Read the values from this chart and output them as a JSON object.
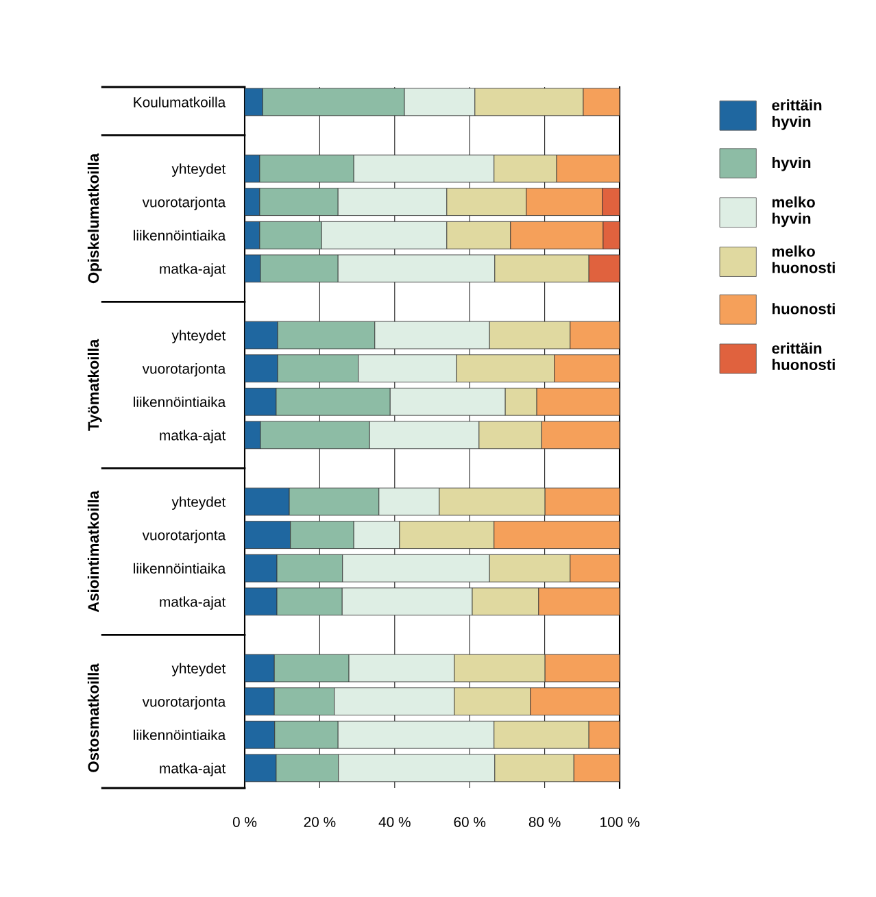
{
  "chart_data": {
    "type": "bar",
    "orientation": "horizontal",
    "stacked": true,
    "categories": [
      "Koulumatkoilla",
      null,
      "yhteydet",
      "vuorotarjonta",
      "liikennöintiaika",
      "matka-ajat",
      null,
      "yhteydet",
      "vuorotarjonta",
      "liikennöintiaika",
      "matka-ajat",
      null,
      "yhteydet",
      "vuorotarjonta",
      "liikennöintiaika",
      "matka-ajat",
      null,
      "yhteydet",
      "vuorotarjonta",
      "liikennöintiaika",
      "matka-ajat"
    ],
    "series": [
      {
        "name": "erittäin hyvin",
        "color": "#1f67a0",
        "values": [
          4.8,
          null,
          4.0,
          4.0,
          4.0,
          4.2,
          null,
          8.8,
          8.8,
          8.4,
          4.2,
          null,
          11.9,
          12.2,
          8.6,
          8.6,
          null,
          7.9,
          7.9,
          8.0,
          8.4
        ]
      },
      {
        "name": "hyvin",
        "color": "#8dbca5",
        "values": [
          37.8,
          null,
          25.1,
          20.9,
          16.5,
          20.7,
          null,
          25.9,
          21.5,
          30.4,
          29.1,
          null,
          23.9,
          16.9,
          17.5,
          17.4,
          null,
          19.9,
          16.0,
          16.9,
          16.6
        ]
      },
      {
        "name": "melko hyvin",
        "color": "#deeee4",
        "values": [
          18.8,
          null,
          37.4,
          29.0,
          33.4,
          41.8,
          null,
          30.6,
          26.2,
          30.7,
          29.2,
          null,
          16.1,
          12.2,
          39.2,
          34.7,
          null,
          28.1,
          32.0,
          41.6,
          41.7
        ]
      },
      {
        "name": "melko huonosti",
        "color": "#e0d9a0",
        "values": [
          28.9,
          null,
          16.7,
          21.2,
          17.0,
          25.1,
          null,
          21.5,
          26.1,
          8.4,
          16.7,
          null,
          28.2,
          25.2,
          21.5,
          17.7,
          null,
          24.2,
          20.3,
          25.3,
          21.1
        ]
      },
      {
        "name": "huonosti",
        "color": "#f5a05a",
        "values": [
          9.7,
          null,
          16.8,
          20.3,
          24.7,
          null,
          null,
          13.2,
          17.4,
          22.1,
          20.8,
          null,
          19.9,
          33.5,
          13.2,
          21.6,
          null,
          19.9,
          23.8,
          8.2,
          12.2
        ]
      },
      {
        "name": "erittäin huonosti",
        "color": "#e0623e",
        "values": [
          null,
          null,
          null,
          4.6,
          4.4,
          8.2,
          null,
          null,
          null,
          null,
          null,
          null,
          null,
          null,
          null,
          null,
          null,
          null,
          null,
          null,
          null
        ]
      }
    ],
    "annotations": [
      "Opiskelumatkoilla",
      "Työmatkoilla",
      "Asiointimatkoilla",
      "Ostosmatkoilla"
    ],
    "xlim": [
      0,
      100
    ],
    "xticks": [
      {
        "value": 0,
        "label": "0 %"
      },
      {
        "value": 20,
        "label": "20 %"
      },
      {
        "value": 40,
        "label": "40 %"
      },
      {
        "value": 60,
        "label": "60 %"
      },
      {
        "value": 80,
        "label": "80 %"
      },
      {
        "value": 100,
        "label": "100 %"
      }
    ],
    "grid": "x",
    "legend": "right"
  }
}
